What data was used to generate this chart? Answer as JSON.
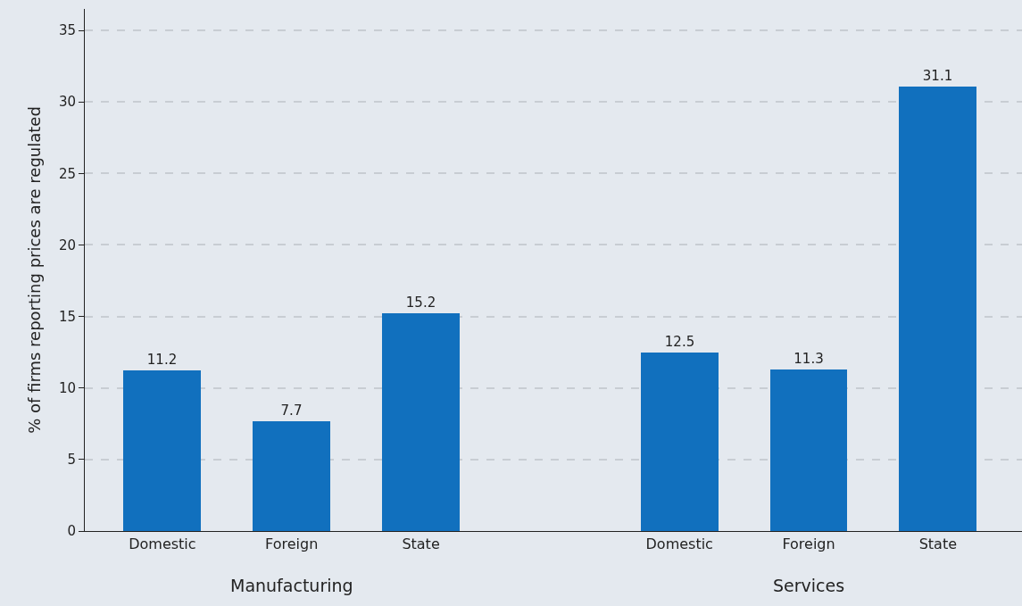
{
  "chart_data": {
    "type": "bar",
    "ylabel": "% of firms reporting prices are regulated",
    "categories": [
      "Domestic",
      "Foreign",
      "State",
      null,
      "Domestic",
      "Foreign",
      "State"
    ],
    "values": [
      11.2,
      7.7,
      15.2,
      null,
      12.5,
      11.3,
      31.1
    ],
    "color": "#1170be",
    "ylim": [
      0,
      36.5
    ],
    "yticks": [
      0,
      5,
      10,
      15,
      20,
      25,
      30,
      35
    ],
    "grid": "y",
    "data_labels": true,
    "annotations": [
      "Manufacturing",
      "Services"
    ]
  }
}
